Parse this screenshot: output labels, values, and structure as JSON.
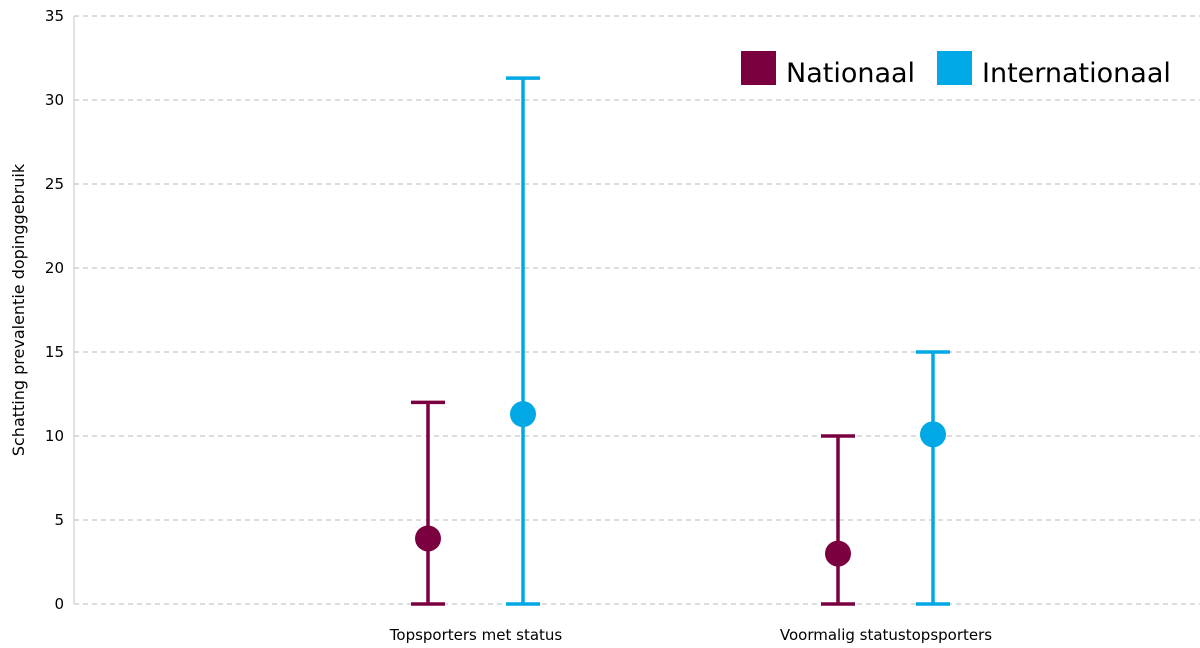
{
  "chart_data": {
    "type": "errorbar",
    "title": "",
    "xlabel": "",
    "ylabel": "Schatting prevalentie dopinggebruik",
    "ylim": [
      0,
      35
    ],
    "yticks": [
      0,
      5,
      10,
      15,
      20,
      25,
      30,
      35
    ],
    "grid": true,
    "legend_position": "top-right",
    "categories": [
      "Topsporters met status",
      "Voormalig statustopsporters"
    ],
    "series": [
      {
        "name": "Nationaal",
        "color": "#7a0040",
        "points": [
          {
            "category": "Topsporters met status",
            "value": 3.9,
            "low": 0,
            "high": 12
          },
          {
            "category": "Voormalig statustopsporters",
            "value": 3.0,
            "low": 0,
            "high": 10
          }
        ]
      },
      {
        "name": "Internationaal",
        "color": "#00a9e6",
        "points": [
          {
            "category": "Topsporters met status",
            "value": 11.3,
            "low": 0,
            "high": 31.3
          },
          {
            "category": "Voormalig statustopsporters",
            "value": 10.1,
            "low": 0,
            "high": 15
          }
        ]
      }
    ]
  }
}
